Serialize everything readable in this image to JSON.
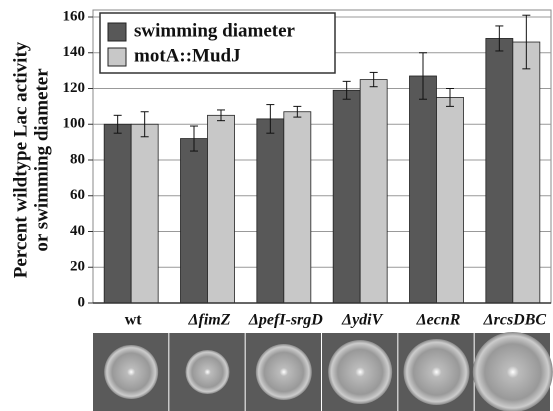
{
  "chart_data": {
    "type": "bar",
    "ylabel": [
      "Percent wildtype Lac activity",
      "or swimming diameter"
    ],
    "categories": [
      "wt",
      "ΔfimZ",
      "ΔpefI-srgD",
      "ΔydiV",
      "ΔecnR",
      "ΔrcsDBC"
    ],
    "series": [
      {
        "name": "swimming diameter",
        "color": "#585858",
        "values": [
          100,
          92,
          103,
          119,
          127,
          148
        ],
        "errors": [
          5,
          7,
          8,
          5,
          13,
          7
        ]
      },
      {
        "name": "motA::MudJ",
        "color": "#c8c8c8",
        "values": [
          100,
          105,
          107,
          125,
          115,
          146
        ],
        "errors": [
          7,
          3,
          3,
          4,
          5,
          15
        ]
      }
    ],
    "ylim": [
      0,
      160
    ],
    "yticks": [
      0,
      20,
      40,
      60,
      80,
      100,
      120,
      140,
      160
    ],
    "grid": true,
    "legend": "top-left"
  }
}
